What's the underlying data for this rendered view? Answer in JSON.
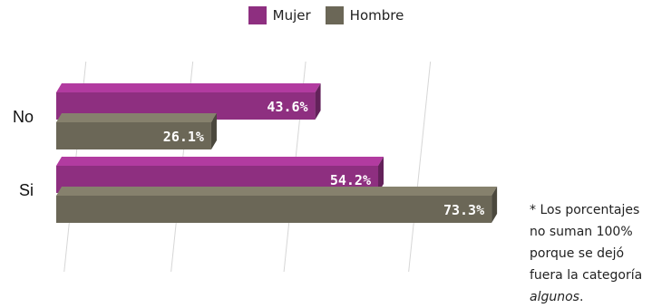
{
  "chart_data": {
    "type": "bar",
    "orientation": "horizontal",
    "categories": [
      "No",
      "Si"
    ],
    "series": [
      {
        "name": "Mujer",
        "color": "#8e2f80",
        "values": [
          43.6,
          54.2
        ],
        "labels": [
          "43.6%",
          "54.2%"
        ]
      },
      {
        "name": "Hombre",
        "color": "#6b6757",
        "values": [
          26.1,
          73.3
        ],
        "labels": [
          "26.1%",
          "73.3%"
        ]
      }
    ],
    "xlim": [
      0,
      80
    ],
    "grid": true,
    "legend_position": "top-center"
  },
  "legend": {
    "mujer_label": "Mujer",
    "hombre_label": "Hombre",
    "mujer_color": "#8e2f80",
    "hombre_color": "#6b6757"
  },
  "note": {
    "line1": "* Los porcentajes",
    "line2": "no suman 100%",
    "line3": "porque se dejó",
    "line4": "fuera la categoría",
    "line5_italic": "algunos",
    "line5_end": "."
  }
}
